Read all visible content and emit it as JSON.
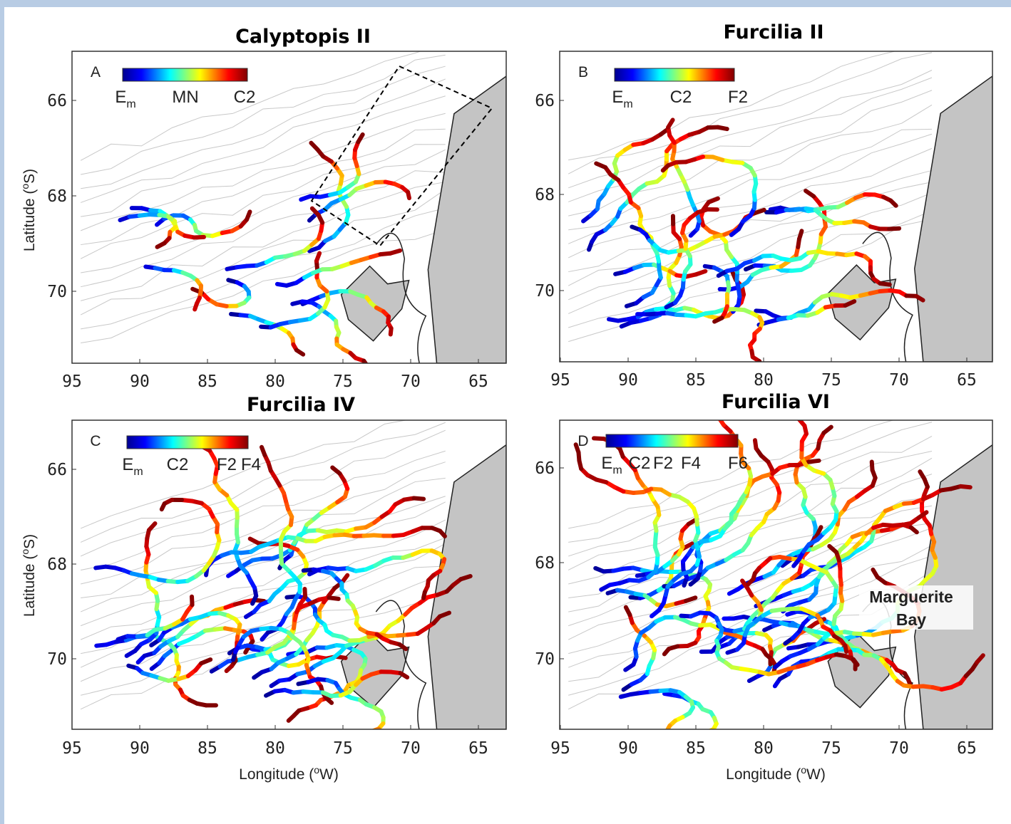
{
  "panels": [
    {
      "title": "Calyptopis II",
      "letter": "A",
      "colorbar_labels": [
        {
          "text": "E",
          "sub": "m"
        },
        {
          "text": "MN"
        },
        {
          "text": "C2"
        }
      ]
    },
    {
      "title": "Furcilia II",
      "letter": "B",
      "colorbar_labels": [
        {
          "text": "E",
          "sub": "m"
        },
        {
          "text": "C2"
        },
        {
          "text": "F2"
        }
      ]
    },
    {
      "title": "Furcilia IV",
      "letter": "C",
      "colorbar_labels": [
        {
          "text": "E",
          "sub": "m"
        },
        {
          "text": "C2"
        },
        {
          "text": "F2"
        },
        {
          "text": "F4"
        }
      ]
    },
    {
      "title": "Furcilia VI",
      "letter": "D",
      "colorbar_labels": [
        {
          "text": "E",
          "sub": "m"
        },
        {
          "text": "C2"
        },
        {
          "text": "F2"
        },
        {
          "text": "F4"
        },
        {
          "text": "F6"
        }
      ]
    }
  ],
  "x_ticks": [
    "95",
    "90",
    "85",
    "80",
    "75",
    "70",
    "65"
  ],
  "y_ticks": [
    "66",
    "68",
    "70"
  ],
  "y_axis_label": {
    "before": "Latitude (",
    "sup": "o",
    "after": "S)"
  },
  "x_axis_label": {
    "before": "Longitude (",
    "sup": "o",
    "after": "W)"
  },
  "annotation": [
    "Marguerite",
    "Bay"
  ]
}
